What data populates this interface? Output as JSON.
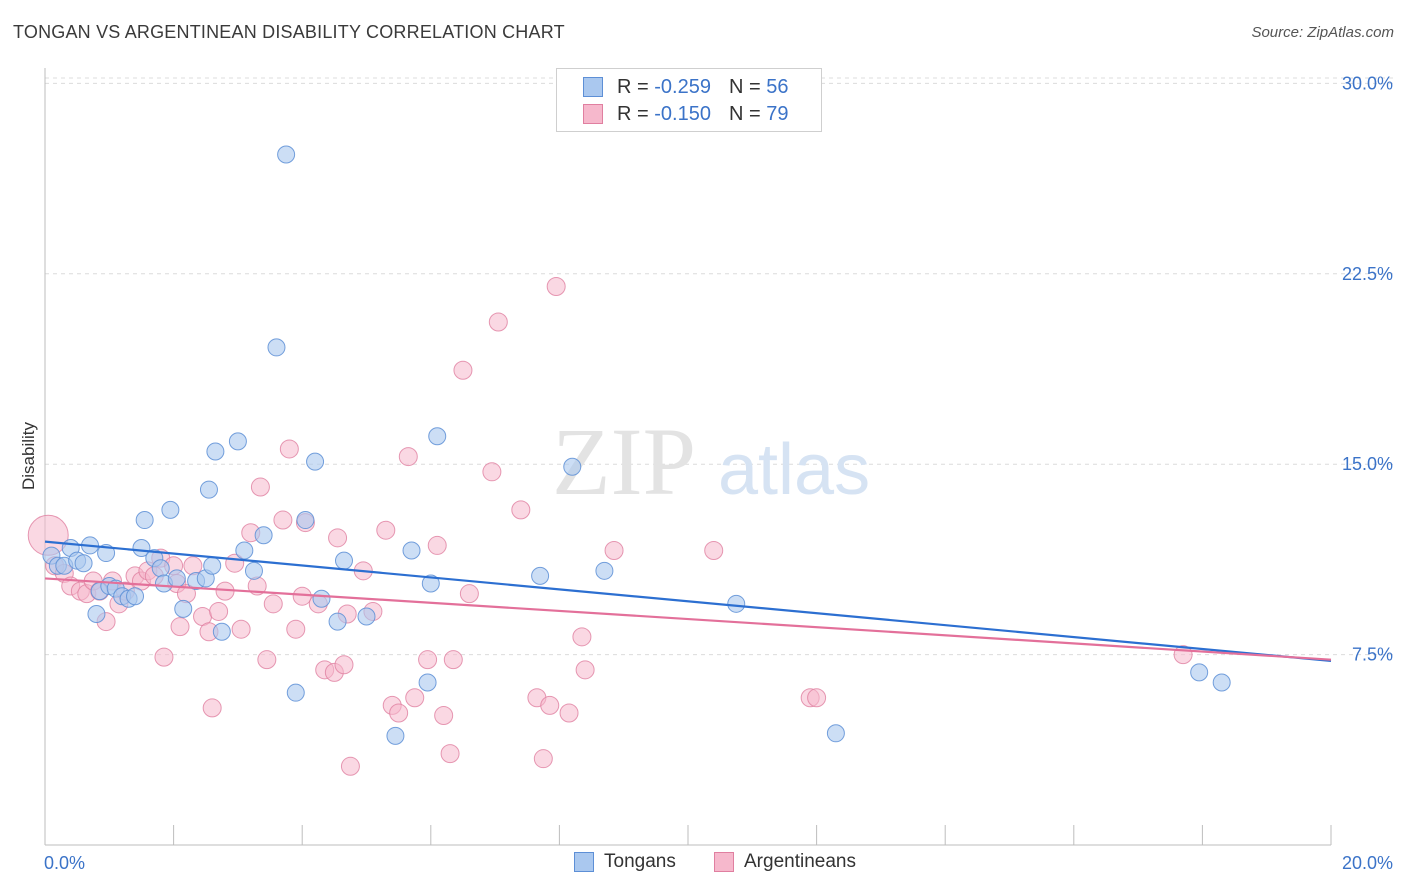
{
  "title": "TONGAN VS ARGENTINEAN DISABILITY CORRELATION CHART",
  "source": "Source: ZipAtlas.com",
  "watermark": {
    "zip": "ZIP",
    "atlas": "atlas"
  },
  "legend": {
    "rows": [
      {
        "r_label": "R =",
        "r_value": "-0.259",
        "n_label": "N =",
        "n_value": "56"
      },
      {
        "r_label": "R =",
        "r_value": "-0.150",
        "n_label": "N =",
        "n_value": "79"
      }
    ],
    "series_names": [
      "Tongans",
      "Argentineans"
    ]
  },
  "colors": {
    "tongans_fill": "#aac8ef",
    "tongans_stroke": "#5d8fd6",
    "tongans_line": "#2c6fd1",
    "argentineans_fill": "#f6b8cc",
    "argentineans_stroke": "#e07fa0",
    "argentineans_line": "#e3709a",
    "value_text": "#3b73c8",
    "grid": "#dcdcdc"
  },
  "chart_data": {
    "type": "scatter",
    "title": "TONGAN VS ARGENTINEAN DISABILITY CORRELATION CHART",
    "xlabel": "",
    "ylabel": "Disability",
    "xlim": [
      0,
      20
    ],
    "ylim": [
      0,
      31
    ],
    "x_tick_labels": [
      "0.0%",
      "20.0%"
    ],
    "y_ticks": [
      7.5,
      15.0,
      22.5,
      30.0
    ],
    "y_tick_labels": [
      "7.5%",
      "15.0%",
      "22.5%",
      "30.0%"
    ],
    "grid": true,
    "series": [
      {
        "name": "Tongans",
        "r": -0.259,
        "n": 56,
        "trend": {
          "x": [
            0,
            20
          ],
          "y": [
            11.95,
            7.25
          ]
        },
        "points": [
          [
            0.1,
            11.4
          ],
          [
            0.2,
            11.0
          ],
          [
            0.3,
            11.0
          ],
          [
            0.4,
            11.7
          ],
          [
            0.5,
            11.2
          ],
          [
            0.6,
            11.1
          ],
          [
            0.7,
            11.8
          ],
          [
            0.8,
            9.1
          ],
          [
            0.85,
            10.0
          ],
          [
            0.95,
            11.5
          ],
          [
            1.0,
            10.2
          ],
          [
            1.1,
            10.1
          ],
          [
            1.2,
            9.8
          ],
          [
            1.3,
            9.7
          ],
          [
            1.4,
            9.8
          ],
          [
            1.5,
            11.7
          ],
          [
            1.55,
            12.8
          ],
          [
            1.7,
            11.3
          ],
          [
            1.8,
            10.9
          ],
          [
            1.85,
            10.3
          ],
          [
            1.95,
            13.2
          ],
          [
            2.05,
            10.5
          ],
          [
            2.15,
            9.3
          ],
          [
            2.35,
            10.4
          ],
          [
            2.5,
            10.5
          ],
          [
            2.55,
            14.0
          ],
          [
            2.6,
            11.0
          ],
          [
            2.65,
            15.5
          ],
          [
            2.75,
            8.4
          ],
          [
            3.0,
            15.9
          ],
          [
            3.1,
            11.6
          ],
          [
            3.25,
            10.8
          ],
          [
            3.4,
            12.2
          ],
          [
            3.6,
            19.6
          ],
          [
            3.75,
            27.2
          ],
          [
            3.9,
            6.0
          ],
          [
            4.05,
            12.8
          ],
          [
            4.2,
            15.1
          ],
          [
            4.3,
            9.7
          ],
          [
            4.55,
            8.8
          ],
          [
            4.65,
            11.2
          ],
          [
            5.0,
            9.0
          ],
          [
            5.45,
            4.3
          ],
          [
            5.7,
            11.6
          ],
          [
            5.95,
            6.4
          ],
          [
            6.0,
            10.3
          ],
          [
            6.1,
            16.1
          ],
          [
            7.7,
            10.6
          ],
          [
            8.2,
            14.9
          ],
          [
            8.7,
            10.8
          ],
          [
            10.75,
            9.5
          ],
          [
            12.3,
            4.4
          ],
          [
            17.95,
            6.8
          ],
          [
            18.3,
            6.4
          ]
        ]
      },
      {
        "name": "Argentineans",
        "r": -0.15,
        "n": 79,
        "trend": {
          "x": [
            0,
            20
          ],
          "y": [
            10.5,
            7.3
          ]
        },
        "points": [
          [
            0.05,
            12.2
          ],
          [
            0.15,
            11.0
          ],
          [
            0.3,
            10.7
          ],
          [
            0.4,
            10.2
          ],
          [
            0.55,
            10.0
          ],
          [
            0.65,
            9.9
          ],
          [
            0.75,
            10.4
          ],
          [
            0.85,
            10.0
          ],
          [
            0.95,
            8.8
          ],
          [
            1.05,
            10.4
          ],
          [
            1.15,
            9.5
          ],
          [
            1.25,
            10.0
          ],
          [
            1.4,
            10.6
          ],
          [
            1.5,
            10.4
          ],
          [
            1.6,
            10.8
          ],
          [
            1.7,
            10.6
          ],
          [
            1.8,
            11.3
          ],
          [
            1.85,
            7.4
          ],
          [
            2.0,
            11.0
          ],
          [
            2.05,
            10.3
          ],
          [
            2.1,
            8.6
          ],
          [
            2.2,
            9.9
          ],
          [
            2.3,
            11.0
          ],
          [
            2.45,
            9.0
          ],
          [
            2.55,
            8.4
          ],
          [
            2.6,
            5.4
          ],
          [
            2.7,
            9.2
          ],
          [
            2.8,
            10.0
          ],
          [
            2.95,
            11.1
          ],
          [
            3.05,
            8.5
          ],
          [
            3.2,
            12.3
          ],
          [
            3.3,
            10.2
          ],
          [
            3.35,
            14.1
          ],
          [
            3.45,
            7.3
          ],
          [
            3.55,
            9.5
          ],
          [
            3.7,
            12.8
          ],
          [
            3.8,
            15.6
          ],
          [
            3.9,
            8.5
          ],
          [
            4.0,
            9.8
          ],
          [
            4.05,
            12.7
          ],
          [
            4.25,
            9.5
          ],
          [
            4.35,
            6.9
          ],
          [
            4.5,
            6.8
          ],
          [
            4.55,
            12.1
          ],
          [
            4.65,
            7.1
          ],
          [
            4.7,
            9.1
          ],
          [
            4.75,
            3.1
          ],
          [
            4.95,
            10.8
          ],
          [
            5.1,
            9.2
          ],
          [
            5.3,
            12.4
          ],
          [
            5.4,
            5.5
          ],
          [
            5.5,
            5.2
          ],
          [
            5.65,
            15.3
          ],
          [
            5.75,
            5.8
          ],
          [
            5.95,
            7.3
          ],
          [
            6.1,
            11.8
          ],
          [
            6.2,
            5.1
          ],
          [
            6.3,
            3.6
          ],
          [
            6.35,
            7.3
          ],
          [
            6.5,
            18.7
          ],
          [
            6.6,
            9.9
          ],
          [
            6.95,
            14.7
          ],
          [
            7.05,
            20.6
          ],
          [
            7.4,
            13.2
          ],
          [
            7.65,
            5.8
          ],
          [
            7.85,
            5.5
          ],
          [
            7.95,
            22.0
          ],
          [
            7.75,
            3.4
          ],
          [
            8.15,
            5.2
          ],
          [
            8.35,
            8.2
          ],
          [
            8.4,
            6.9
          ],
          [
            8.85,
            11.6
          ],
          [
            10.4,
            11.6
          ],
          [
            11.9,
            5.8
          ],
          [
            12.0,
            5.8
          ],
          [
            17.7,
            7.5
          ]
        ]
      }
    ]
  }
}
